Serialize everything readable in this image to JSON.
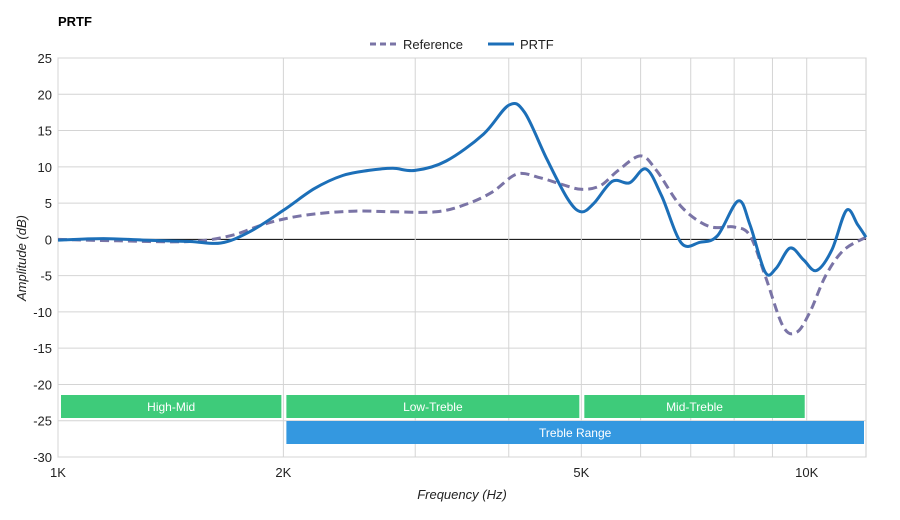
{
  "chart_data": {
    "type": "line",
    "title": "PRTF",
    "xlabel": "Frequency (Hz)",
    "ylabel": "Amplitude (dB)",
    "x_scale": "log",
    "xlim": [
      1000,
      12000
    ],
    "ylim": [
      -30,
      25
    ],
    "x_ticks": [
      1000,
      2000,
      5000,
      10000
    ],
    "x_tick_labels": [
      "1K",
      "2K",
      "5K",
      "10K"
    ],
    "x_minor_gridlines": [
      3000,
      4000,
      6000,
      7000,
      8000,
      9000
    ],
    "y_ticks": [
      25,
      20,
      15,
      10,
      5,
      0,
      -5,
      -10,
      -15,
      -20,
      -25,
      -30
    ],
    "grid": true,
    "legend_position": "top-center",
    "series": [
      {
        "name": "Reference",
        "color": "#7a74a6",
        "style": "dashed",
        "points": [
          [
            1000,
            0
          ],
          [
            1200,
            -0.2
          ],
          [
            1500,
            -0.3
          ],
          [
            1700,
            0.5
          ],
          [
            1850,
            1.8
          ],
          [
            2000,
            2.8
          ],
          [
            2200,
            3.5
          ],
          [
            2500,
            3.9
          ],
          [
            2800,
            3.8
          ],
          [
            3200,
            3.8
          ],
          [
            3500,
            4.8
          ],
          [
            3800,
            6.5
          ],
          [
            4100,
            9.0
          ],
          [
            4400,
            8.5
          ],
          [
            4700,
            7.6
          ],
          [
            5000,
            6.9
          ],
          [
            5300,
            7.4
          ],
          [
            5600,
            9.5
          ],
          [
            6000,
            11.5
          ],
          [
            6300,
            9.5
          ],
          [
            6800,
            4.5
          ],
          [
            7400,
            1.8
          ],
          [
            8000,
            1.7
          ],
          [
            8400,
            0.5
          ],
          [
            8800,
            -5.0
          ],
          [
            9300,
            -12.0
          ],
          [
            9700,
            -12.8
          ],
          [
            10100,
            -10.0
          ],
          [
            10600,
            -5.0
          ],
          [
            11200,
            -1.5
          ],
          [
            12000,
            0.3
          ]
        ]
      },
      {
        "name": "PRTF",
        "color": "#1c6fb8",
        "style": "solid",
        "points": [
          [
            1000,
            -0.1
          ],
          [
            1150,
            0.1
          ],
          [
            1300,
            -0.1
          ],
          [
            1500,
            -0.3
          ],
          [
            1650,
            -0.5
          ],
          [
            1800,
            1.0
          ],
          [
            2000,
            4.0
          ],
          [
            2200,
            7.0
          ],
          [
            2400,
            8.8
          ],
          [
            2600,
            9.5
          ],
          [
            2800,
            9.8
          ],
          [
            3000,
            9.5
          ],
          [
            3300,
            10.8
          ],
          [
            3700,
            14.5
          ],
          [
            4000,
            18.5
          ],
          [
            4200,
            17.5
          ],
          [
            4500,
            11.0
          ],
          [
            4800,
            5.5
          ],
          [
            5000,
            3.8
          ],
          [
            5200,
            5.0
          ],
          [
            5500,
            8.0
          ],
          [
            5800,
            7.8
          ],
          [
            6100,
            9.7
          ],
          [
            6400,
            6.0
          ],
          [
            6800,
            -0.5
          ],
          [
            7200,
            -0.4
          ],
          [
            7600,
            0.5
          ],
          [
            8100,
            5.3
          ],
          [
            8400,
            2.0
          ],
          [
            8800,
            -4.5
          ],
          [
            9100,
            -4.0
          ],
          [
            9500,
            -1.2
          ],
          [
            9900,
            -2.8
          ],
          [
            10300,
            -4.3
          ],
          [
            10800,
            -1.5
          ],
          [
            11300,
            4.0
          ],
          [
            11700,
            2.0
          ],
          [
            12000,
            0.3
          ]
        ]
      }
    ],
    "bands": [
      {
        "label": "High-Mid",
        "from": 1000,
        "to": 2000,
        "row": 0,
        "color": "#3ecb7a"
      },
      {
        "label": "Low-Treble",
        "from": 2000,
        "to": 5000,
        "row": 0,
        "color": "#3ecb7a"
      },
      {
        "label": "Mid-Treble",
        "from": 5000,
        "to": 10000,
        "row": 0,
        "color": "#3ecb7a"
      },
      {
        "label": "Treble Range",
        "from": 2000,
        "to": 12000,
        "row": 1,
        "color": "#3498e0"
      }
    ]
  }
}
